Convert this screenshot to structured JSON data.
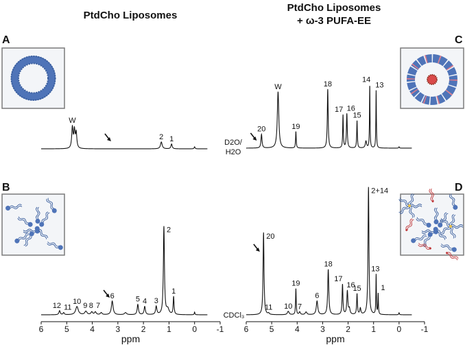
{
  "titles": {
    "left": "PtdCho Liposomes",
    "right_line1": "PtdCho Liposomes",
    "right_line2": "+ ω-3 PUFA-EE"
  },
  "panel_letters": {
    "A": "A",
    "B": "B",
    "C": "C",
    "D": "D"
  },
  "solvents": {
    "top_line1": "D2O/",
    "top_line2": "H2O",
    "bottom": "CDCl₃"
  },
  "colors": {
    "spectrum": "#111111",
    "box_bg": "#f3f5f8",
    "box_border": "#7a7a7a",
    "lipid_blue": "#4f74b8",
    "pufa_red": "#c0393b"
  },
  "chart_data": [
    {
      "panel": "A",
      "type": "line",
      "title": "PtdCho Liposomes (D2O/H2O)",
      "xlabel": "ppm",
      "xlim": [
        6,
        -1
      ],
      "xticks": [
        "6",
        "5",
        "4",
        "3",
        "2",
        "1",
        "0",
        "-1"
      ],
      "trace_range": [
        6,
        -0.5
      ],
      "arrow_ppm": 3.4,
      "peaks": [
        {
          "ppm": 4.78,
          "intensity": 30,
          "width": 0.03,
          "label": "W"
        },
        {
          "ppm": 4.7,
          "intensity": 25,
          "width": 0.03,
          "label": ""
        },
        {
          "ppm": 4.63,
          "intensity": 22,
          "width": 0.03,
          "label": ""
        },
        {
          "ppm": 1.3,
          "intensity": 10,
          "width": 0.04,
          "label": "2"
        },
        {
          "ppm": 0.9,
          "intensity": 7,
          "width": 0.03,
          "label": "1"
        },
        {
          "ppm": 0.0,
          "intensity": 3,
          "width": 0.02,
          "label": ""
        }
      ]
    },
    {
      "panel": "B",
      "type": "line",
      "title": "PtdCho Liposomes (CDCl3)",
      "xlabel": "ppm",
      "xlim": [
        6,
        -1
      ],
      "xticks": [
        "6",
        "5",
        "4",
        "3",
        "2",
        "1",
        "0",
        "-1"
      ],
      "trace_range": [
        6,
        -0.5
      ],
      "arrow_ppm": 3.45,
      "peaks": [
        {
          "ppm": 5.28,
          "intensity": 6,
          "width": 0.03,
          "label": "12"
        },
        {
          "ppm": 5.12,
          "intensity": 3,
          "width": 0.03,
          "label": "11"
        },
        {
          "ppm": 4.6,
          "intensity": 12,
          "width": 0.06,
          "label": "10"
        },
        {
          "ppm": 4.25,
          "intensity": 5,
          "width": 0.05,
          "label": "9"
        },
        {
          "ppm": 4.02,
          "intensity": 4,
          "width": 0.04,
          "label": "8"
        },
        {
          "ppm": 3.88,
          "intensity": 4,
          "width": 0.04,
          "label": "7"
        },
        {
          "ppm": 3.65,
          "intensity": 3,
          "width": 0.04,
          "label": ""
        },
        {
          "ppm": 3.22,
          "intensity": 20,
          "width": 0.04,
          "label": "6"
        },
        {
          "ppm": 2.7,
          "intensity": 3,
          "width": 0.05,
          "label": ""
        },
        {
          "ppm": 2.22,
          "intensity": 15,
          "width": 0.03,
          "label": "5"
        },
        {
          "ppm": 1.95,
          "intensity": 12,
          "width": 0.03,
          "label": "4"
        },
        {
          "ppm": 1.5,
          "intensity": 12,
          "width": 0.03,
          "label": "3"
        },
        {
          "ppm": 1.2,
          "intensity": 128,
          "width": 0.025,
          "label": "2"
        },
        {
          "ppm": 1.05,
          "intensity": 8,
          "width": 0.06,
          "label": ""
        },
        {
          "ppm": 0.82,
          "intensity": 26,
          "width": 0.02,
          "label": "1"
        },
        {
          "ppm": 0.0,
          "intensity": 4,
          "width": 0.015,
          "label": ""
        }
      ]
    },
    {
      "panel": "C",
      "type": "line",
      "title": "PtdCho Liposomes + ω-3 PUFA-EE (D2O/H2O)",
      "xlabel": "",
      "xlim": [
        6,
        -1
      ],
      "trace_range": [
        6,
        -0.5
      ],
      "arrow_ppm": 5.72,
      "peaks": [
        {
          "ppm": 5.4,
          "intensity": 20,
          "width": 0.025,
          "label": "20"
        },
        {
          "ppm": 4.75,
          "intensity": 82,
          "width": 0.035,
          "label": "W"
        },
        {
          "ppm": 4.05,
          "intensity": 24,
          "width": 0.015,
          "label": "19"
        },
        {
          "ppm": 2.8,
          "intensity": 86,
          "width": 0.02,
          "label": "18"
        },
        {
          "ppm": 2.2,
          "intensity": 48,
          "width": 0.015,
          "label": "17"
        },
        {
          "ppm": 2.05,
          "intensity": 50,
          "width": 0.02,
          "label": "16"
        },
        {
          "ppm": 1.65,
          "intensity": 40,
          "width": 0.015,
          "label": "15"
        },
        {
          "ppm": 1.3,
          "intensity": 10,
          "width": 0.03,
          "label": ""
        },
        {
          "ppm": 1.15,
          "intensity": 92,
          "width": 0.012,
          "label": "14"
        },
        {
          "ppm": 0.9,
          "intensity": 84,
          "width": 0.012,
          "label": "13"
        },
        {
          "ppm": 0.0,
          "intensity": 2,
          "width": 0.015,
          "label": ""
        }
      ]
    },
    {
      "panel": "D",
      "type": "line",
      "title": "PtdCho Liposomes + ω-3 PUFA-EE (CDCl3)",
      "xlabel": "ppm",
      "xlim": [
        6,
        -1
      ],
      "xticks": [
        "6",
        "5",
        "4",
        "3",
        "2",
        "1",
        "0",
        "-1"
      ],
      "trace_range": [
        6,
        -0.5
      ],
      "arrow_ppm": 5.6,
      "peaks": [
        {
          "ppm": 5.32,
          "intensity": 120,
          "width": 0.022,
          "label": "20"
        },
        {
          "ppm": 5.12,
          "intensity": 2,
          "width": 0.03,
          "label": "11"
        },
        {
          "ppm": 4.35,
          "intensity": 5,
          "width": 0.04,
          "label": "10"
        },
        {
          "ppm": 4.05,
          "intensity": 38,
          "width": 0.015,
          "label": "19"
        },
        {
          "ppm": 3.9,
          "intensity": 4,
          "width": 0.03,
          "label": "7"
        },
        {
          "ppm": 3.65,
          "intensity": 4,
          "width": 0.04,
          "label": ""
        },
        {
          "ppm": 3.22,
          "intensity": 20,
          "width": 0.035,
          "label": "6"
        },
        {
          "ppm": 2.78,
          "intensity": 66,
          "width": 0.025,
          "label": "18"
        },
        {
          "ppm": 2.22,
          "intensity": 44,
          "width": 0.02,
          "label": "17"
        },
        {
          "ppm": 2.03,
          "intensity": 34,
          "width": 0.025,
          "label": "16"
        },
        {
          "ppm": 1.95,
          "intensity": 8,
          "width": 0.03,
          "label": ""
        },
        {
          "ppm": 1.65,
          "intensity": 30,
          "width": 0.018,
          "label": "15"
        },
        {
          "ppm": 1.52,
          "intensity": 9,
          "width": 0.025,
          "label": ""
        },
        {
          "ppm": 1.2,
          "intensity": 186,
          "width": 0.022,
          "label": "2+14"
        },
        {
          "ppm": 0.9,
          "intensity": 58,
          "width": 0.012,
          "label": "13"
        },
        {
          "ppm": 0.82,
          "intensity": 30,
          "width": 0.012,
          "label": "1"
        },
        {
          "ppm": 0.0,
          "intensity": 3,
          "width": 0.015,
          "label": ""
        }
      ]
    }
  ]
}
